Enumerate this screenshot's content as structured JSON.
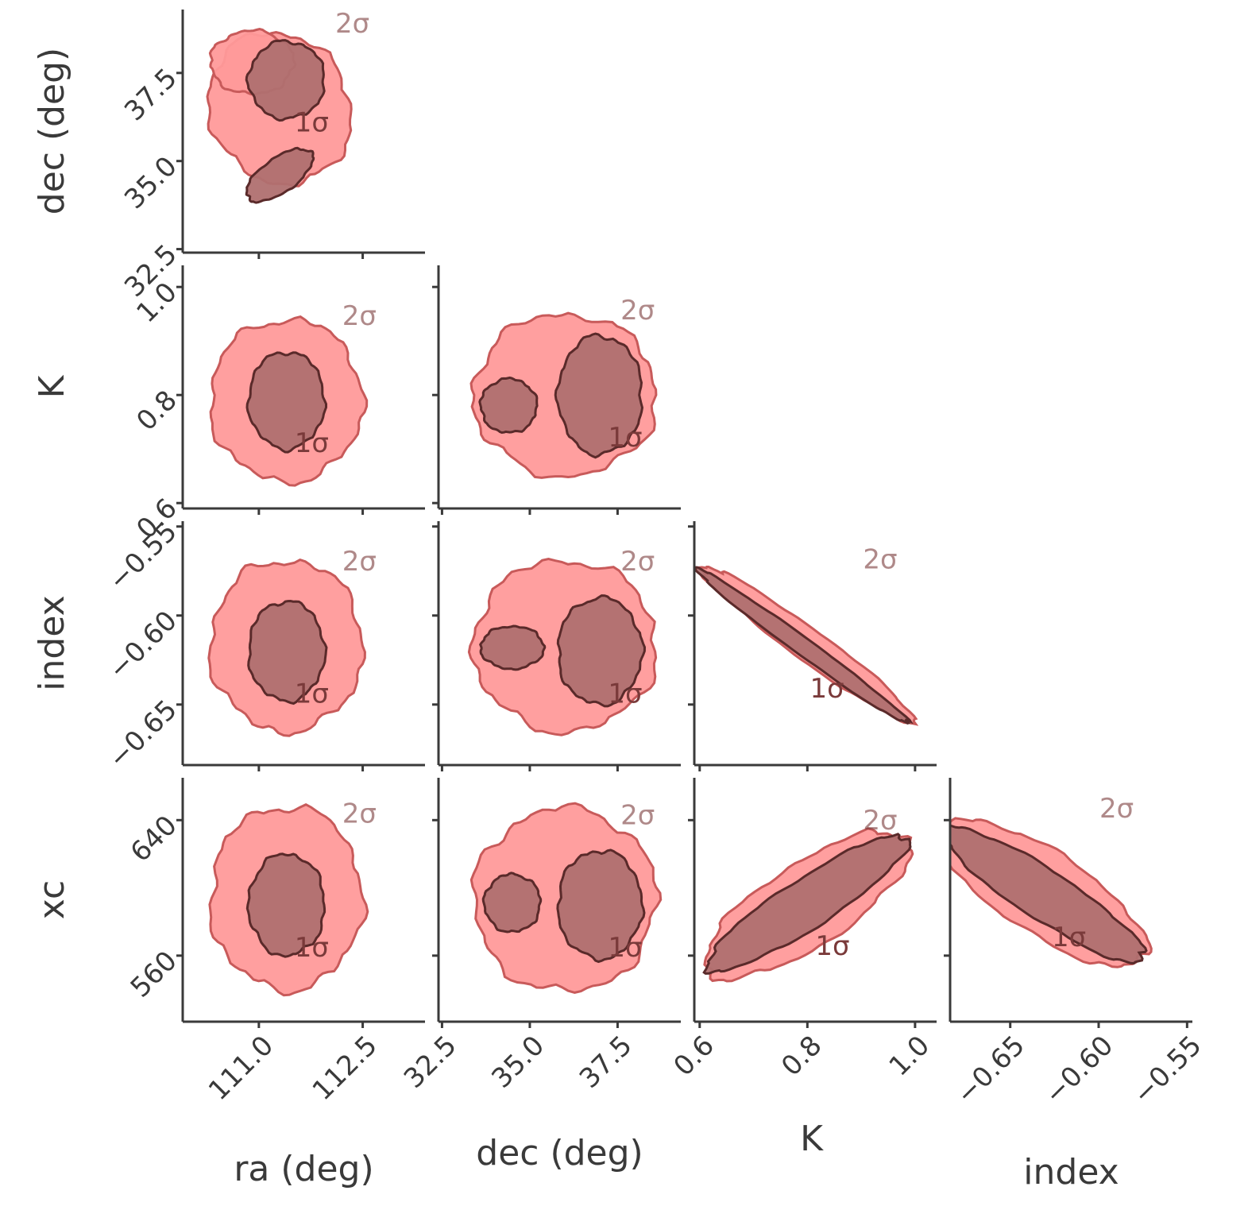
{
  "chart_data": {
    "type": "corner",
    "colors": {
      "outer_fill": "#ff9a9a",
      "inner_fill": "#b07070",
      "outer_line": "#c85a5a",
      "inner_line": "#5a2a2a",
      "axis": "#3a3a3a",
      "contour_label": "#7a3a3a"
    },
    "contour_labels": {
      "one_sigma": "1σ",
      "two_sigma": "2σ"
    },
    "parameters": [
      {
        "key": "ra",
        "label": "ra (deg)",
        "range": [
          109.9,
          113.4
        ],
        "ticks": [
          111.0,
          112.5
        ],
        "tick_labels": [
          "111.0",
          "112.5"
        ]
      },
      {
        "key": "dec",
        "label": "dec (deg)",
        "range": [
          32.4,
          39.3
        ],
        "ticks": [
          32.5,
          35.0,
          37.5
        ],
        "tick_labels": [
          "32.5",
          "35.0",
          "37.5"
        ]
      },
      {
        "key": "K",
        "label": "K",
        "range": [
          0.59,
          1.04
        ],
        "ticks": [
          0.6,
          0.8,
          1.0
        ],
        "tick_labels": [
          "0.6",
          "0.8",
          "1.0"
        ]
      },
      {
        "key": "index",
        "label": "index",
        "range": [
          -0.684,
          -0.547
        ],
        "ticks": [
          -0.65,
          -0.6,
          -0.55
        ],
        "tick_labels": [
          "−0.65",
          "−0.60",
          "−0.55"
        ]
      },
      {
        "key": "xc",
        "label": "xc",
        "range": [
          521,
          665
        ],
        "ticks": [
          560,
          640
        ],
        "tick_labels": [
          "560",
          "640"
        ]
      }
    ],
    "panels": [
      {
        "x": "ra",
        "y": "dec",
        "row": 0,
        "col": 0,
        "shape": "banana",
        "outer_blobs": [
          {
            "cx": 111.3,
            "cy": 36.5,
            "rx": 1.0,
            "ry": 2.2,
            "rot": 30
          },
          {
            "cx": 110.9,
            "cy": 37.8,
            "rx": 0.6,
            "ry": 0.9,
            "rot": 0
          }
        ],
        "inner_blobs": [
          {
            "cx": 111.4,
            "cy": 37.3,
            "rx": 0.55,
            "ry": 1.1,
            "rot": 0
          },
          {
            "cx": 111.3,
            "cy": 34.6,
            "rx": 0.25,
            "ry": 1.1,
            "rot": -55
          }
        ]
      },
      {
        "x": "ra",
        "y": "K",
        "row": 1,
        "col": 0,
        "outer_blobs": [
          {
            "cx": 111.4,
            "cy": 0.79,
            "rx": 1.1,
            "ry": 0.15,
            "rot": 0
          }
        ],
        "inner_blobs": [
          {
            "cx": 111.4,
            "cy": 0.79,
            "rx": 0.55,
            "ry": 0.09,
            "rot": 0
          }
        ]
      },
      {
        "x": "dec",
        "y": "K",
        "row": 1,
        "col": 1,
        "outer_blobs": [
          {
            "cx": 36.0,
            "cy": 0.8,
            "rx": 2.6,
            "ry": 0.15,
            "rot": 0
          }
        ],
        "inner_blobs": [
          {
            "cx": 37.0,
            "cy": 0.8,
            "rx": 1.2,
            "ry": 0.11,
            "rot": 0
          },
          {
            "cx": 34.4,
            "cy": 0.78,
            "rx": 0.8,
            "ry": 0.05,
            "rot": 0
          }
        ]
      },
      {
        "x": "ra",
        "y": "index",
        "row": 2,
        "col": 0,
        "outer_blobs": [
          {
            "cx": 111.4,
            "cy": -0.617,
            "rx": 1.1,
            "ry": 0.048,
            "rot": 0
          }
        ],
        "inner_blobs": [
          {
            "cx": 111.4,
            "cy": -0.62,
            "rx": 0.55,
            "ry": 0.028,
            "rot": 0
          }
        ]
      },
      {
        "x": "dec",
        "y": "index",
        "row": 2,
        "col": 1,
        "outer_blobs": [
          {
            "cx": 36.0,
            "cy": -0.617,
            "rx": 2.6,
            "ry": 0.048,
            "rot": 0
          }
        ],
        "inner_blobs": [
          {
            "cx": 37.0,
            "cy": -0.62,
            "rx": 1.2,
            "ry": 0.03,
            "rot": 0
          },
          {
            "cx": 34.5,
            "cy": -0.618,
            "rx": 0.9,
            "ry": 0.012,
            "rot": 0
          }
        ]
      },
      {
        "x": "K",
        "y": "index",
        "row": 2,
        "col": 2,
        "shape": "diagonal",
        "outer_blobs": [
          {
            "cx": 0.8,
            "cy": -0.616,
            "rx": 0.2,
            "ry": 0.01,
            "rot": "auto"
          }
        ],
        "inner_blobs": [
          {
            "cx": 0.79,
            "cy": -0.617,
            "rx": 0.12,
            "ry": 0.005,
            "rot": "auto"
          }
        ]
      },
      {
        "x": "ra",
        "y": "xc",
        "row": 3,
        "col": 0,
        "outer_blobs": [
          {
            "cx": 111.4,
            "cy": 594,
            "rx": 1.1,
            "ry": 54,
            "rot": 0
          }
        ],
        "inner_blobs": [
          {
            "cx": 111.4,
            "cy": 590,
            "rx": 0.55,
            "ry": 30,
            "rot": 0
          }
        ]
      },
      {
        "x": "dec",
        "y": "xc",
        "row": 3,
        "col": 1,
        "outer_blobs": [
          {
            "cx": 36.0,
            "cy": 593,
            "rx": 2.6,
            "ry": 54,
            "rot": 0
          }
        ],
        "inner_blobs": [
          {
            "cx": 37.0,
            "cy": 590,
            "rx": 1.2,
            "ry": 32,
            "rot": 0
          },
          {
            "cx": 34.5,
            "cy": 591,
            "rx": 0.8,
            "ry": 17,
            "rot": 0
          }
        ]
      },
      {
        "x": "K",
        "y": "xc",
        "row": 3,
        "col": 2,
        "shape": "diagonal",
        "outer_blobs": [
          {
            "cx": 0.8,
            "cy": 590,
            "rx": 0.2,
            "ry": 18,
            "rot": "auto"
          }
        ],
        "inner_blobs": [
          {
            "cx": 0.8,
            "cy": 591,
            "rx": 0.12,
            "ry": 10,
            "rot": "auto"
          }
        ]
      },
      {
        "x": "index",
        "y": "xc",
        "row": 3,
        "col": 3,
        "shape": "diagonal",
        "outer_blobs": [
          {
            "cx": -0.631,
            "cy": 597,
            "rx": 0.06,
            "ry": 14,
            "rot": "auto"
          }
        ],
        "inner_blobs": [
          {
            "cx": -0.631,
            "cy": 596,
            "rx": 0.035,
            "ry": 8,
            "rot": "auto"
          }
        ]
      }
    ]
  }
}
